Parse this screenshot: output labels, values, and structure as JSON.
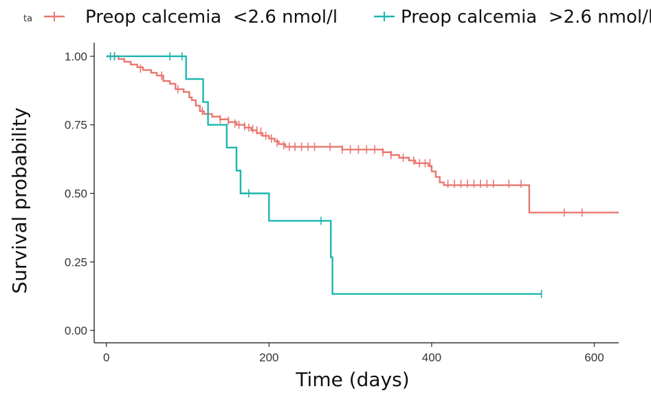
{
  "chart_data": {
    "type": "line",
    "chart_kind": "kaplan-meier survival curve",
    "xlabel": "Time (days)",
    "ylabel": "Survival probability",
    "xlim": [
      -15,
      630
    ],
    "ylim": [
      -0.045,
      1.05
    ],
    "x_ticks": [
      0,
      200,
      400,
      600
    ],
    "y_ticks": [
      0.0,
      0.25,
      0.5,
      0.75,
      1.0
    ],
    "x_tick_labels": [
      "0",
      "200",
      "400",
      "600"
    ],
    "y_tick_labels": [
      "0.00",
      "0.25",
      "0.50",
      "0.75",
      "1.00"
    ],
    "grid": false,
    "legend": {
      "position": "top",
      "prefix": "ta",
      "entries": [
        "Preop calcemia  <2.6 nmol/l",
        "Preop calcemia  >2.6 nmol/l"
      ]
    },
    "series": [
      {
        "name": "Preop calcemia  <2.6 nmol/l",
        "color": "#E8776F",
        "steps": [
          [
            0,
            1.0
          ],
          [
            15,
            0.99
          ],
          [
            22,
            0.98
          ],
          [
            30,
            0.97
          ],
          [
            38,
            0.96
          ],
          [
            45,
            0.95
          ],
          [
            55,
            0.94
          ],
          [
            62,
            0.93
          ],
          [
            70,
            0.91
          ],
          [
            78,
            0.9
          ],
          [
            85,
            0.88
          ],
          [
            95,
            0.87
          ],
          [
            102,
            0.85
          ],
          [
            105,
            0.84
          ],
          [
            110,
            0.82
          ],
          [
            115,
            0.8
          ],
          [
            120,
            0.79
          ],
          [
            130,
            0.78
          ],
          [
            140,
            0.77
          ],
          [
            150,
            0.76
          ],
          [
            160,
            0.75
          ],
          [
            170,
            0.74
          ],
          [
            178,
            0.73
          ],
          [
            185,
            0.72
          ],
          [
            192,
            0.71
          ],
          [
            200,
            0.7
          ],
          [
            207,
            0.69
          ],
          [
            212,
            0.68
          ],
          [
            220,
            0.67
          ],
          [
            290,
            0.66
          ],
          [
            340,
            0.65
          ],
          [
            350,
            0.64
          ],
          [
            360,
            0.63
          ],
          [
            372,
            0.62
          ],
          [
            380,
            0.61
          ],
          [
            396,
            0.6
          ],
          [
            400,
            0.58
          ],
          [
            405,
            0.56
          ],
          [
            410,
            0.54
          ],
          [
            415,
            0.53
          ],
          [
            520,
            0.43
          ],
          [
            630,
            0.43
          ]
        ],
        "censors": [
          [
            10,
            1.0
          ],
          [
            42,
            0.955
          ],
          [
            68,
            0.93
          ],
          [
            88,
            0.88
          ],
          [
            118,
            0.8
          ],
          [
            140,
            0.77
          ],
          [
            150,
            0.765
          ],
          [
            158,
            0.755
          ],
          [
            163,
            0.75
          ],
          [
            170,
            0.745
          ],
          [
            175,
            0.74
          ],
          [
            180,
            0.735
          ],
          [
            185,
            0.73
          ],
          [
            190,
            0.725
          ],
          [
            196,
            0.71
          ],
          [
            203,
            0.7
          ],
          [
            210,
            0.685
          ],
          [
            218,
            0.675
          ],
          [
            225,
            0.67
          ],
          [
            232,
            0.67
          ],
          [
            240,
            0.67
          ],
          [
            248,
            0.67
          ],
          [
            256,
            0.67
          ],
          [
            275,
            0.67
          ],
          [
            290,
            0.66
          ],
          [
            300,
            0.66
          ],
          [
            310,
            0.66
          ],
          [
            320,
            0.66
          ],
          [
            330,
            0.66
          ],
          [
            340,
            0.65
          ],
          [
            350,
            0.64
          ],
          [
            365,
            0.63
          ],
          [
            378,
            0.62
          ],
          [
            385,
            0.61
          ],
          [
            392,
            0.61
          ],
          [
            398,
            0.61
          ],
          [
            420,
            0.535
          ],
          [
            428,
            0.535
          ],
          [
            436,
            0.535
          ],
          [
            444,
            0.535
          ],
          [
            452,
            0.535
          ],
          [
            460,
            0.535
          ],
          [
            468,
            0.535
          ],
          [
            476,
            0.535
          ],
          [
            495,
            0.535
          ],
          [
            510,
            0.535
          ],
          [
            563,
            0.43
          ],
          [
            585,
            0.43
          ]
        ]
      },
      {
        "name": "Preop calcemia  >2.6 nmol/l",
        "color": "#1BB6AF",
        "steps": [
          [
            0,
            1.0
          ],
          [
            98,
            0.917
          ],
          [
            119,
            0.833
          ],
          [
            125,
            0.75
          ],
          [
            148,
            0.667
          ],
          [
            160,
            0.583
          ],
          [
            165,
            0.5
          ],
          [
            200,
            0.4
          ],
          [
            276,
            0.267
          ],
          [
            278,
            0.133
          ],
          [
            535,
            0.133
          ]
        ],
        "censors": [
          [
            5,
            1.0
          ],
          [
            10,
            1.0
          ],
          [
            78,
            1.0
          ],
          [
            93,
            1.0
          ],
          [
            175,
            0.5
          ],
          [
            264,
            0.4
          ],
          [
            535,
            0.133
          ]
        ]
      }
    ]
  }
}
